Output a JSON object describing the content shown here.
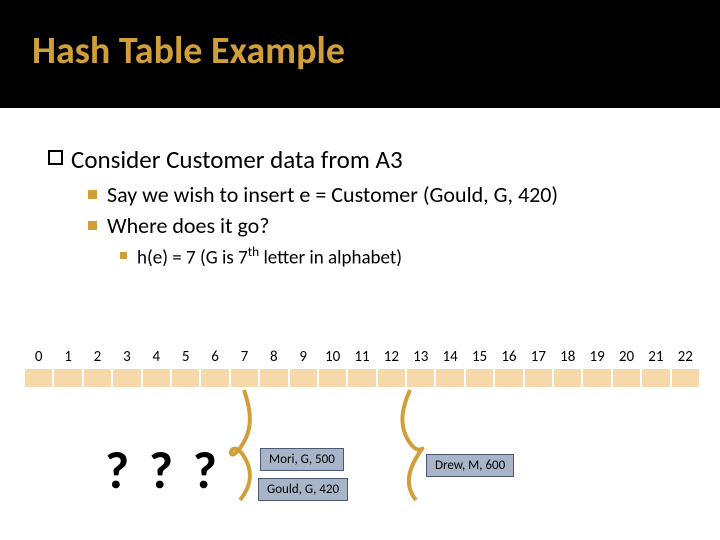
{
  "title": "Hash Table Example",
  "main_bullet": "Consider Customer data from A3",
  "sub1": "Say we wish to insert e = Customer (Gould, G, 420)",
  "sub2": "Where does it go?",
  "subsub_prefix": "h(e) = 7   (G is 7",
  "subsub_sup": "th",
  "subsub_suffix": " letter in alphabet)",
  "question": "? ? ?",
  "indices": [
    "0",
    "1",
    "2",
    "3",
    "4",
    "5",
    "6",
    "7",
    "8",
    "9",
    "10",
    "11",
    "12",
    "13",
    "14",
    "15",
    "16",
    "17",
    "18",
    "19",
    "20",
    "21",
    "22"
  ],
  "tag_mori": "Mori, G, 500",
  "tag_gould": "Gould, G, 420",
  "tag_drew": "Drew, M, 600",
  "colors": {
    "title": "#d19f3a",
    "title_bg": "#000000",
    "slot_bg": "#f5d9a8",
    "tag_bg": "#a8b5c9",
    "tag_border": "#4a5a75",
    "arrow": "#d19f3a"
  }
}
